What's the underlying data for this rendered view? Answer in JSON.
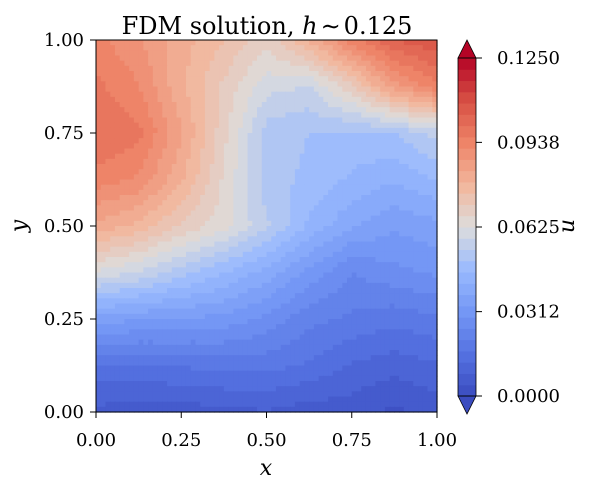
{
  "chart_data": {
    "type": "heatmap",
    "subtype": "filled-contour",
    "title": "FDM solution, h ~ 0.125",
    "title_parts": {
      "prefix": "FDM solution, ",
      "symbol": "h",
      "relation": "∼",
      "value": "0.125"
    },
    "xlabel": "x",
    "ylabel": "y",
    "xlim": [
      0.0,
      1.0
    ],
    "ylim": [
      0.0,
      1.0
    ],
    "xticks": [
      "0.00",
      "0.25",
      "0.50",
      "0.75",
      "1.00"
    ],
    "yticks": [
      "0.00",
      "0.25",
      "0.50",
      "0.75",
      "1.00"
    ],
    "grid": false,
    "colormap": "coolwarm",
    "colorbar": {
      "label": "u",
      "range": [
        0.0,
        0.125
      ],
      "ticks": [
        "0.0000",
        "0.0312",
        "0.0625",
        "0.0938",
        "0.1250"
      ],
      "extend": "both",
      "levels": 30
    },
    "x": [
      0.0,
      0.125,
      0.25,
      0.375,
      0.5,
      0.625,
      0.75,
      0.875,
      1.0
    ],
    "y": [
      0.0,
      0.125,
      0.25,
      0.375,
      0.5,
      0.625,
      0.75,
      0.875,
      1.0
    ],
    "z": [
      [
        0.007,
        0.006,
        0.006,
        0.007,
        0.008,
        0.006,
        0.006,
        0.003,
        0.006
      ],
      [
        0.016,
        0.016,
        0.017,
        0.018,
        0.018,
        0.016,
        0.012,
        0.01,
        0.012
      ],
      [
        0.035,
        0.034,
        0.033,
        0.032,
        0.028,
        0.022,
        0.02,
        0.018,
        0.02
      ],
      [
        0.062,
        0.058,
        0.052,
        0.046,
        0.04,
        0.032,
        0.025,
        0.028,
        0.03
      ],
      [
        0.082,
        0.078,
        0.07,
        0.064,
        0.055,
        0.045,
        0.038,
        0.034,
        0.036
      ],
      [
        0.094,
        0.091,
        0.08,
        0.066,
        0.052,
        0.049,
        0.045,
        0.042,
        0.046
      ],
      [
        0.1,
        0.097,
        0.084,
        0.068,
        0.052,
        0.05,
        0.049,
        0.05,
        0.056
      ],
      [
        0.097,
        0.092,
        0.08,
        0.07,
        0.06,
        0.058,
        0.07,
        0.086,
        0.095
      ],
      [
        0.093,
        0.088,
        0.081,
        0.075,
        0.068,
        0.08,
        0.094,
        0.104,
        0.108
      ]
    ]
  },
  "colors": {
    "cool_end": "#3b4cc0",
    "mid": "#dddddd",
    "warm_end": "#b40426"
  }
}
